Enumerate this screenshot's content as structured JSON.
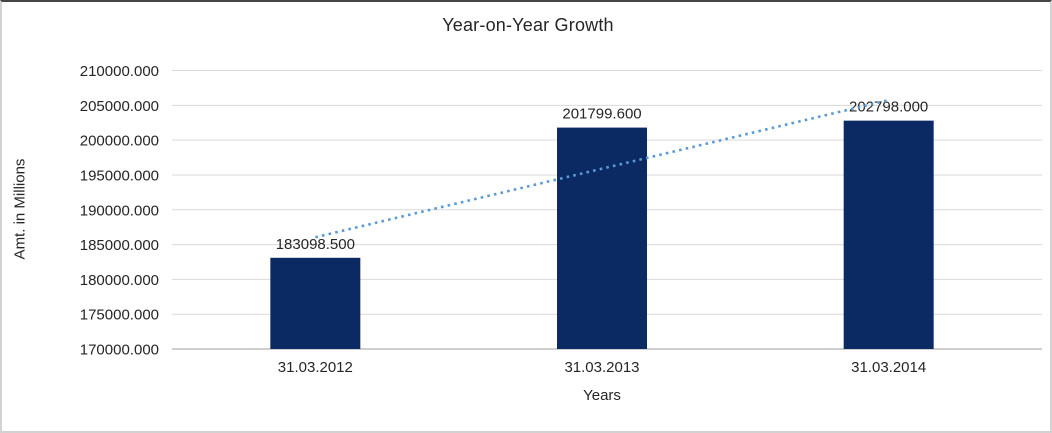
{
  "chart_data": {
    "type": "bar",
    "title": "Year-on-Year Growth",
    "xlabel": "Years",
    "ylabel": "Amt. in Millions",
    "categories": [
      "31.03.2012",
      "31.03.2013",
      "31.03.2014"
    ],
    "series": [
      {
        "name": "Amt. in Millions",
        "values": [
          183098.5,
          201799.6,
          202798.0
        ],
        "data_labels": [
          "183098.500",
          "201799.600",
          "202798.000"
        ]
      }
    ],
    "ylim": [
      170000,
      210000
    ],
    "ytick_step": 5000,
    "ytick_decimals": 3,
    "ytick_labels": [
      "170000.000",
      "175000.000",
      "180000.000",
      "185000.000",
      "190000.000",
      "195000.000",
      "200000.000",
      "205000.000",
      "210000.000"
    ],
    "grid": true,
    "legend": "none",
    "trendline": {
      "type": "linear",
      "style": "dotted",
      "span": "first-to-last-category"
    },
    "colors": {
      "bar": "#0b2a64",
      "trendline": "#5b9bd5",
      "gridline": "#d9d9d9",
      "axis_line": "#bfbfbf",
      "text": "#262626"
    }
  }
}
